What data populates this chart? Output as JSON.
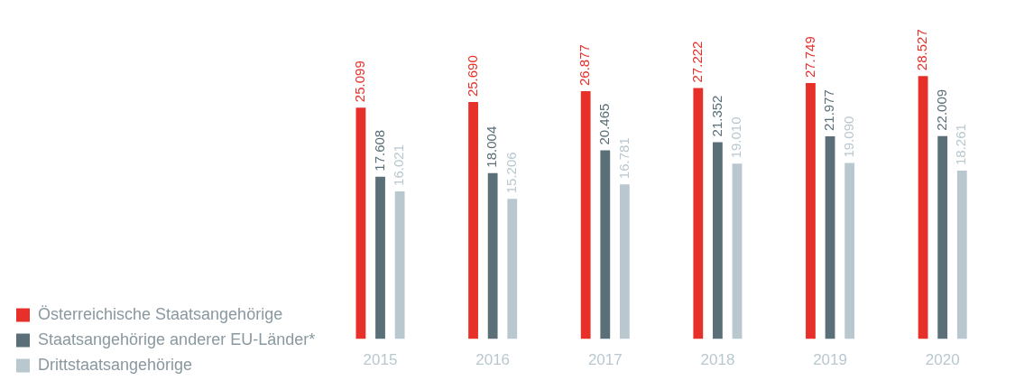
{
  "chart_data": {
    "type": "bar",
    "categories": [
      "2015",
      "2016",
      "2017",
      "2018",
      "2019",
      "2020"
    ],
    "series": [
      {
        "name": "Österreichische Staatsangehörige",
        "color": "#e8302a",
        "values": [
          25099,
          25690,
          26877,
          27222,
          27749,
          28527
        ],
        "value_labels": [
          "25.099",
          "25.690",
          "26.877",
          "27.222",
          "27.749",
          "28.527"
        ]
      },
      {
        "name": "Staatsangehörige anderer EU-Länder*",
        "color": "#5b6f79",
        "values": [
          17608,
          18004,
          20465,
          21352,
          21977,
          22009
        ],
        "value_labels": [
          "17.608",
          "18.004",
          "20.465",
          "21.352",
          "21.977",
          "22.009"
        ]
      },
      {
        "name": "Drittstaatsangehörige",
        "color": "#b9c8cf",
        "values": [
          16021,
          15206,
          16781,
          19010,
          19090,
          18261
        ],
        "value_labels": [
          "16.021",
          "15.206",
          "16.781",
          "19.010",
          "19.090",
          "18.261"
        ]
      }
    ],
    "legend": "bottom left",
    "grid": false,
    "tick_labels": "x"
  }
}
